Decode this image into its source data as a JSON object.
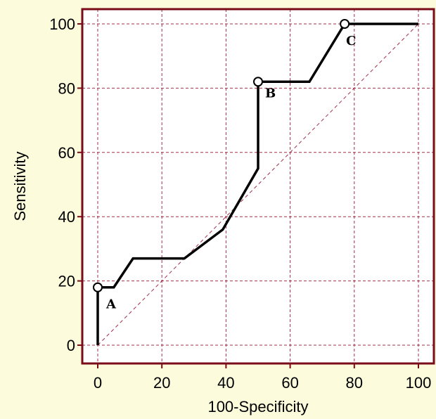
{
  "chart_data": {
    "type": "line",
    "title": "",
    "xlabel": "100-Specificity",
    "ylabel": "Sensitivity",
    "xlim": [
      0,
      100
    ],
    "ylim": [
      0,
      100
    ],
    "xticks": [
      "0",
      "20",
      "40",
      "60",
      "80",
      "100"
    ],
    "yticks": [
      "0",
      "20",
      "40",
      "60",
      "80",
      "100"
    ],
    "grid": true,
    "series": [
      {
        "x": [
          0,
          0,
          5,
          11,
          27,
          39,
          50,
          50,
          66,
          77,
          100
        ],
        "y": [
          0,
          18,
          18,
          27,
          27,
          36,
          55,
          82,
          82,
          100,
          100
        ]
      }
    ],
    "diagonal_reference": true,
    "points": [
      {
        "label": "A",
        "x": 0,
        "y": 18
      },
      {
        "label": "B",
        "x": 50,
        "y": 82
      },
      {
        "label": "C",
        "x": 77,
        "y": 100
      }
    ],
    "colors": {
      "background": "#fcfcdc",
      "plot_background": "#ffffff",
      "frame": "#7a0b18",
      "grid": "#a2304a",
      "line": "#000000"
    }
  }
}
